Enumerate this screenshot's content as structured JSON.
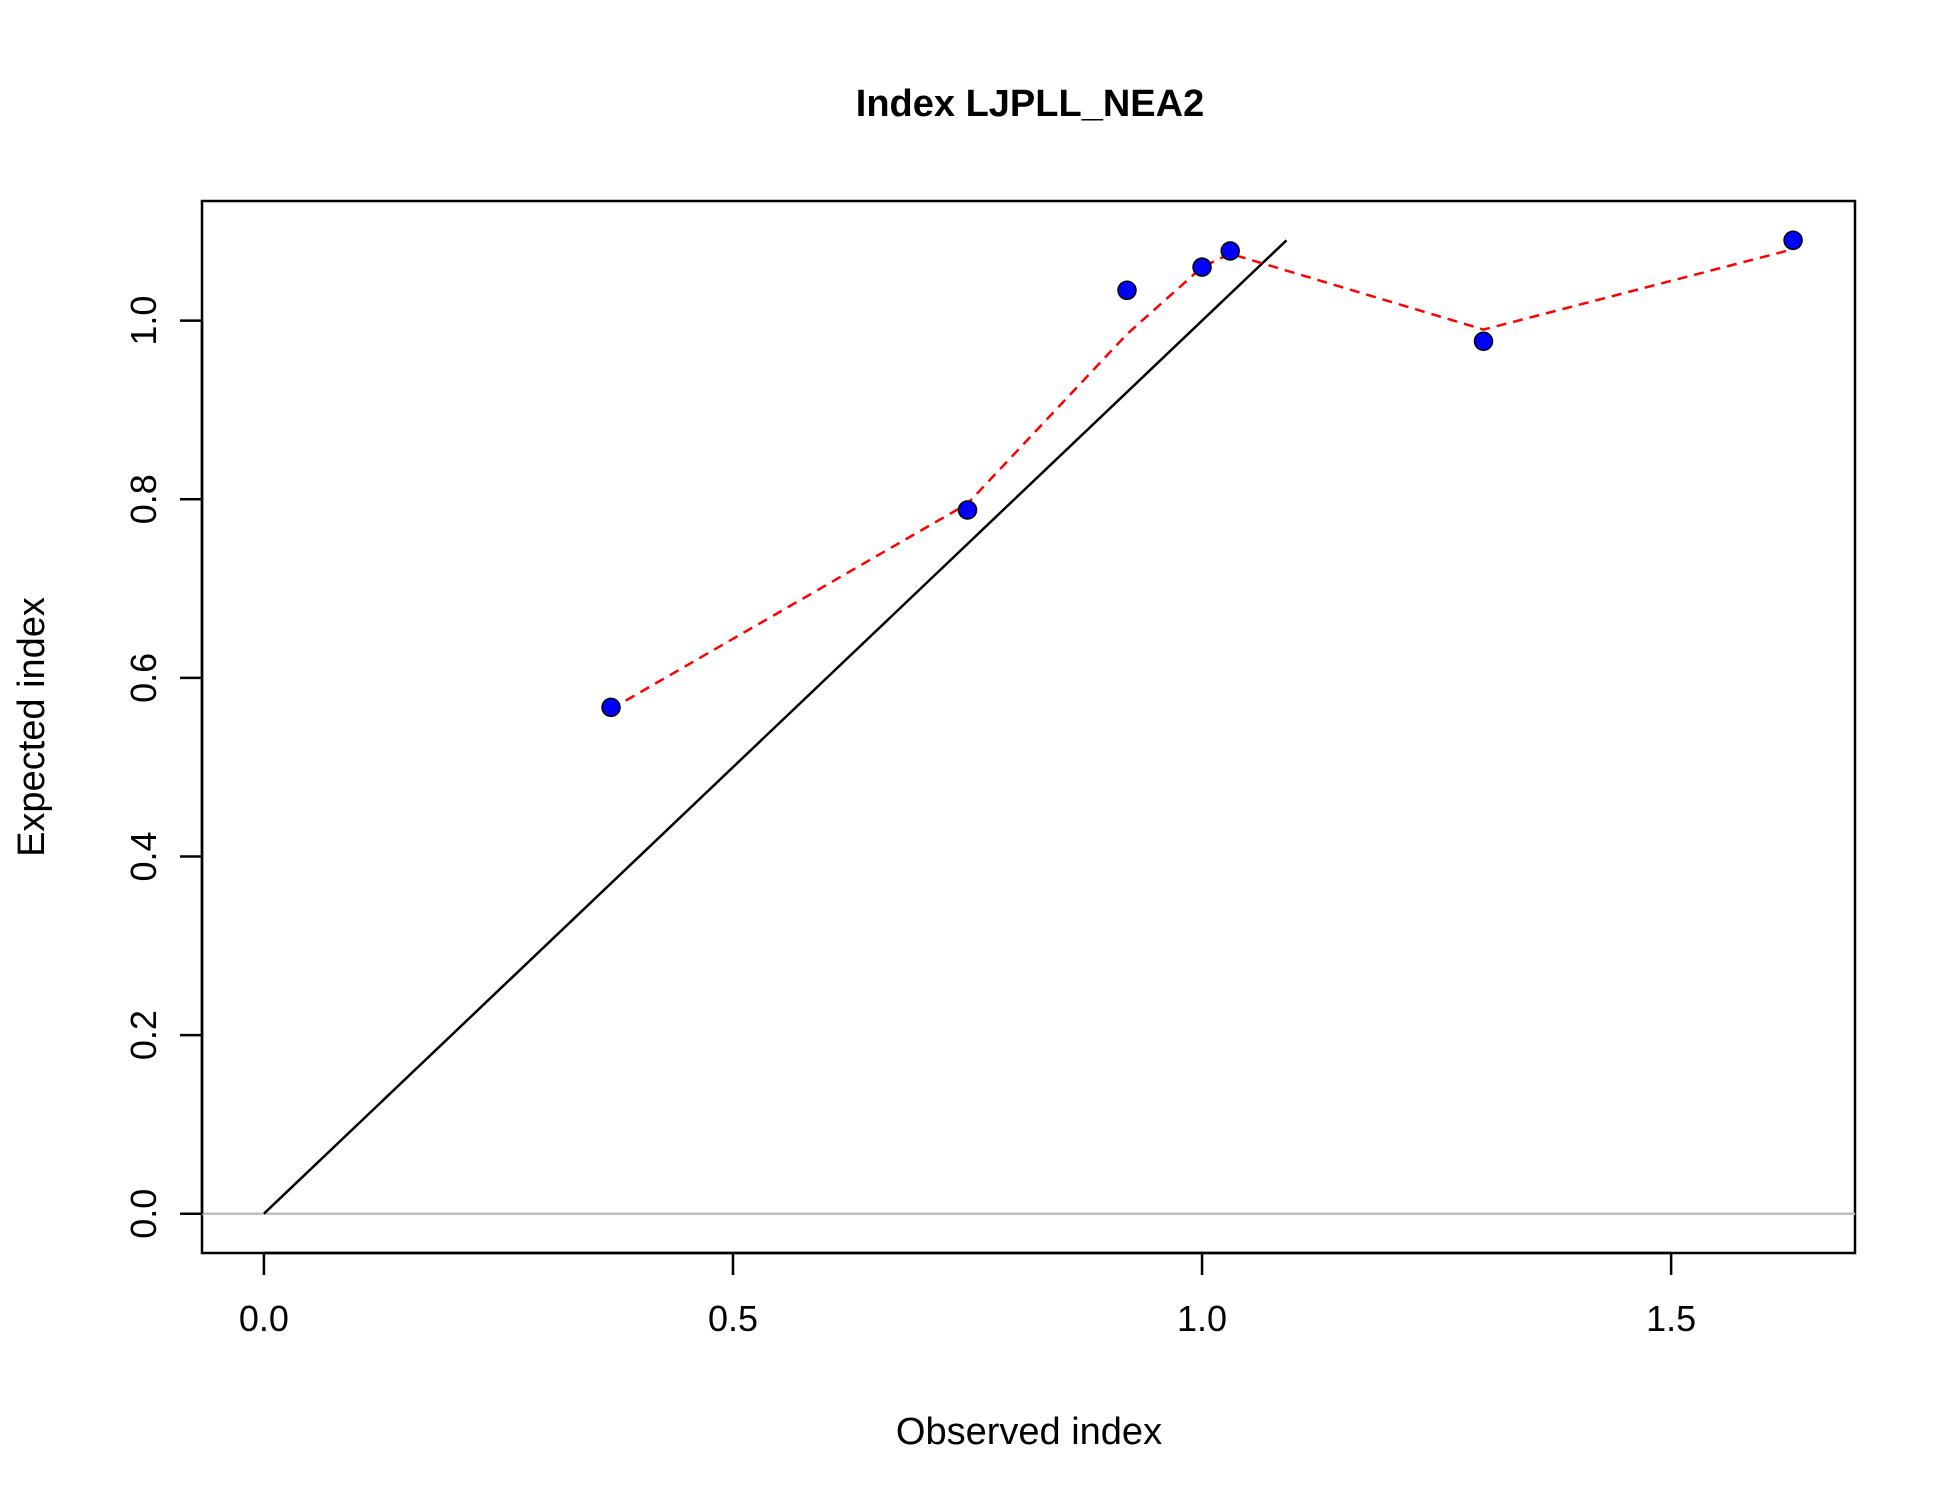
{
  "chart_data": {
    "type": "scatter",
    "title": "Index LJPLL_NEA2",
    "xlabel": "Observed index",
    "ylabel": "Expected index",
    "xlim": [
      -0.066,
      1.696
    ],
    "ylim": [
      -0.044,
      1.134
    ],
    "x_ticks": [
      {
        "value": 0.0,
        "label": "0.0"
      },
      {
        "value": 0.5,
        "label": "0.5"
      },
      {
        "value": 1.0,
        "label": "1.0"
      },
      {
        "value": 1.5,
        "label": "1.5"
      }
    ],
    "y_ticks": [
      {
        "value": 0.0,
        "label": "0.0"
      },
      {
        "value": 0.2,
        "label": "0.2"
      },
      {
        "value": 0.4,
        "label": "0.4"
      },
      {
        "value": 0.6,
        "label": "0.6"
      },
      {
        "value": 0.8,
        "label": "0.8"
      },
      {
        "value": 1.0,
        "label": "1.0"
      }
    ],
    "points": [
      {
        "x": 0.37,
        "y": 0.567
      },
      {
        "x": 0.75,
        "y": 0.788
      },
      {
        "x": 0.92,
        "y": 1.034
      },
      {
        "x": 1.0,
        "y": 1.06
      },
      {
        "x": 1.03,
        "y": 1.078
      },
      {
        "x": 1.3,
        "y": 0.977
      },
      {
        "x": 1.63,
        "y": 1.09
      }
    ],
    "smoother": [
      {
        "x": 0.37,
        "y": 0.565
      },
      {
        "x": 0.75,
        "y": 0.795
      },
      {
        "x": 0.92,
        "y": 0.985
      },
      {
        "x": 1.0,
        "y": 1.06
      },
      {
        "x": 1.03,
        "y": 1.075
      },
      {
        "x": 1.3,
        "y": 0.99
      },
      {
        "x": 1.63,
        "y": 1.08
      }
    ],
    "identity_line": {
      "from": 0.0,
      "to": 1.09
    },
    "reference_hline": 0.0,
    "colors": {
      "points_fill": "#0000ff",
      "points_stroke": "#000000",
      "smoother": "#ff0000",
      "identity": "#000000",
      "hline": "#bebebe"
    }
  }
}
